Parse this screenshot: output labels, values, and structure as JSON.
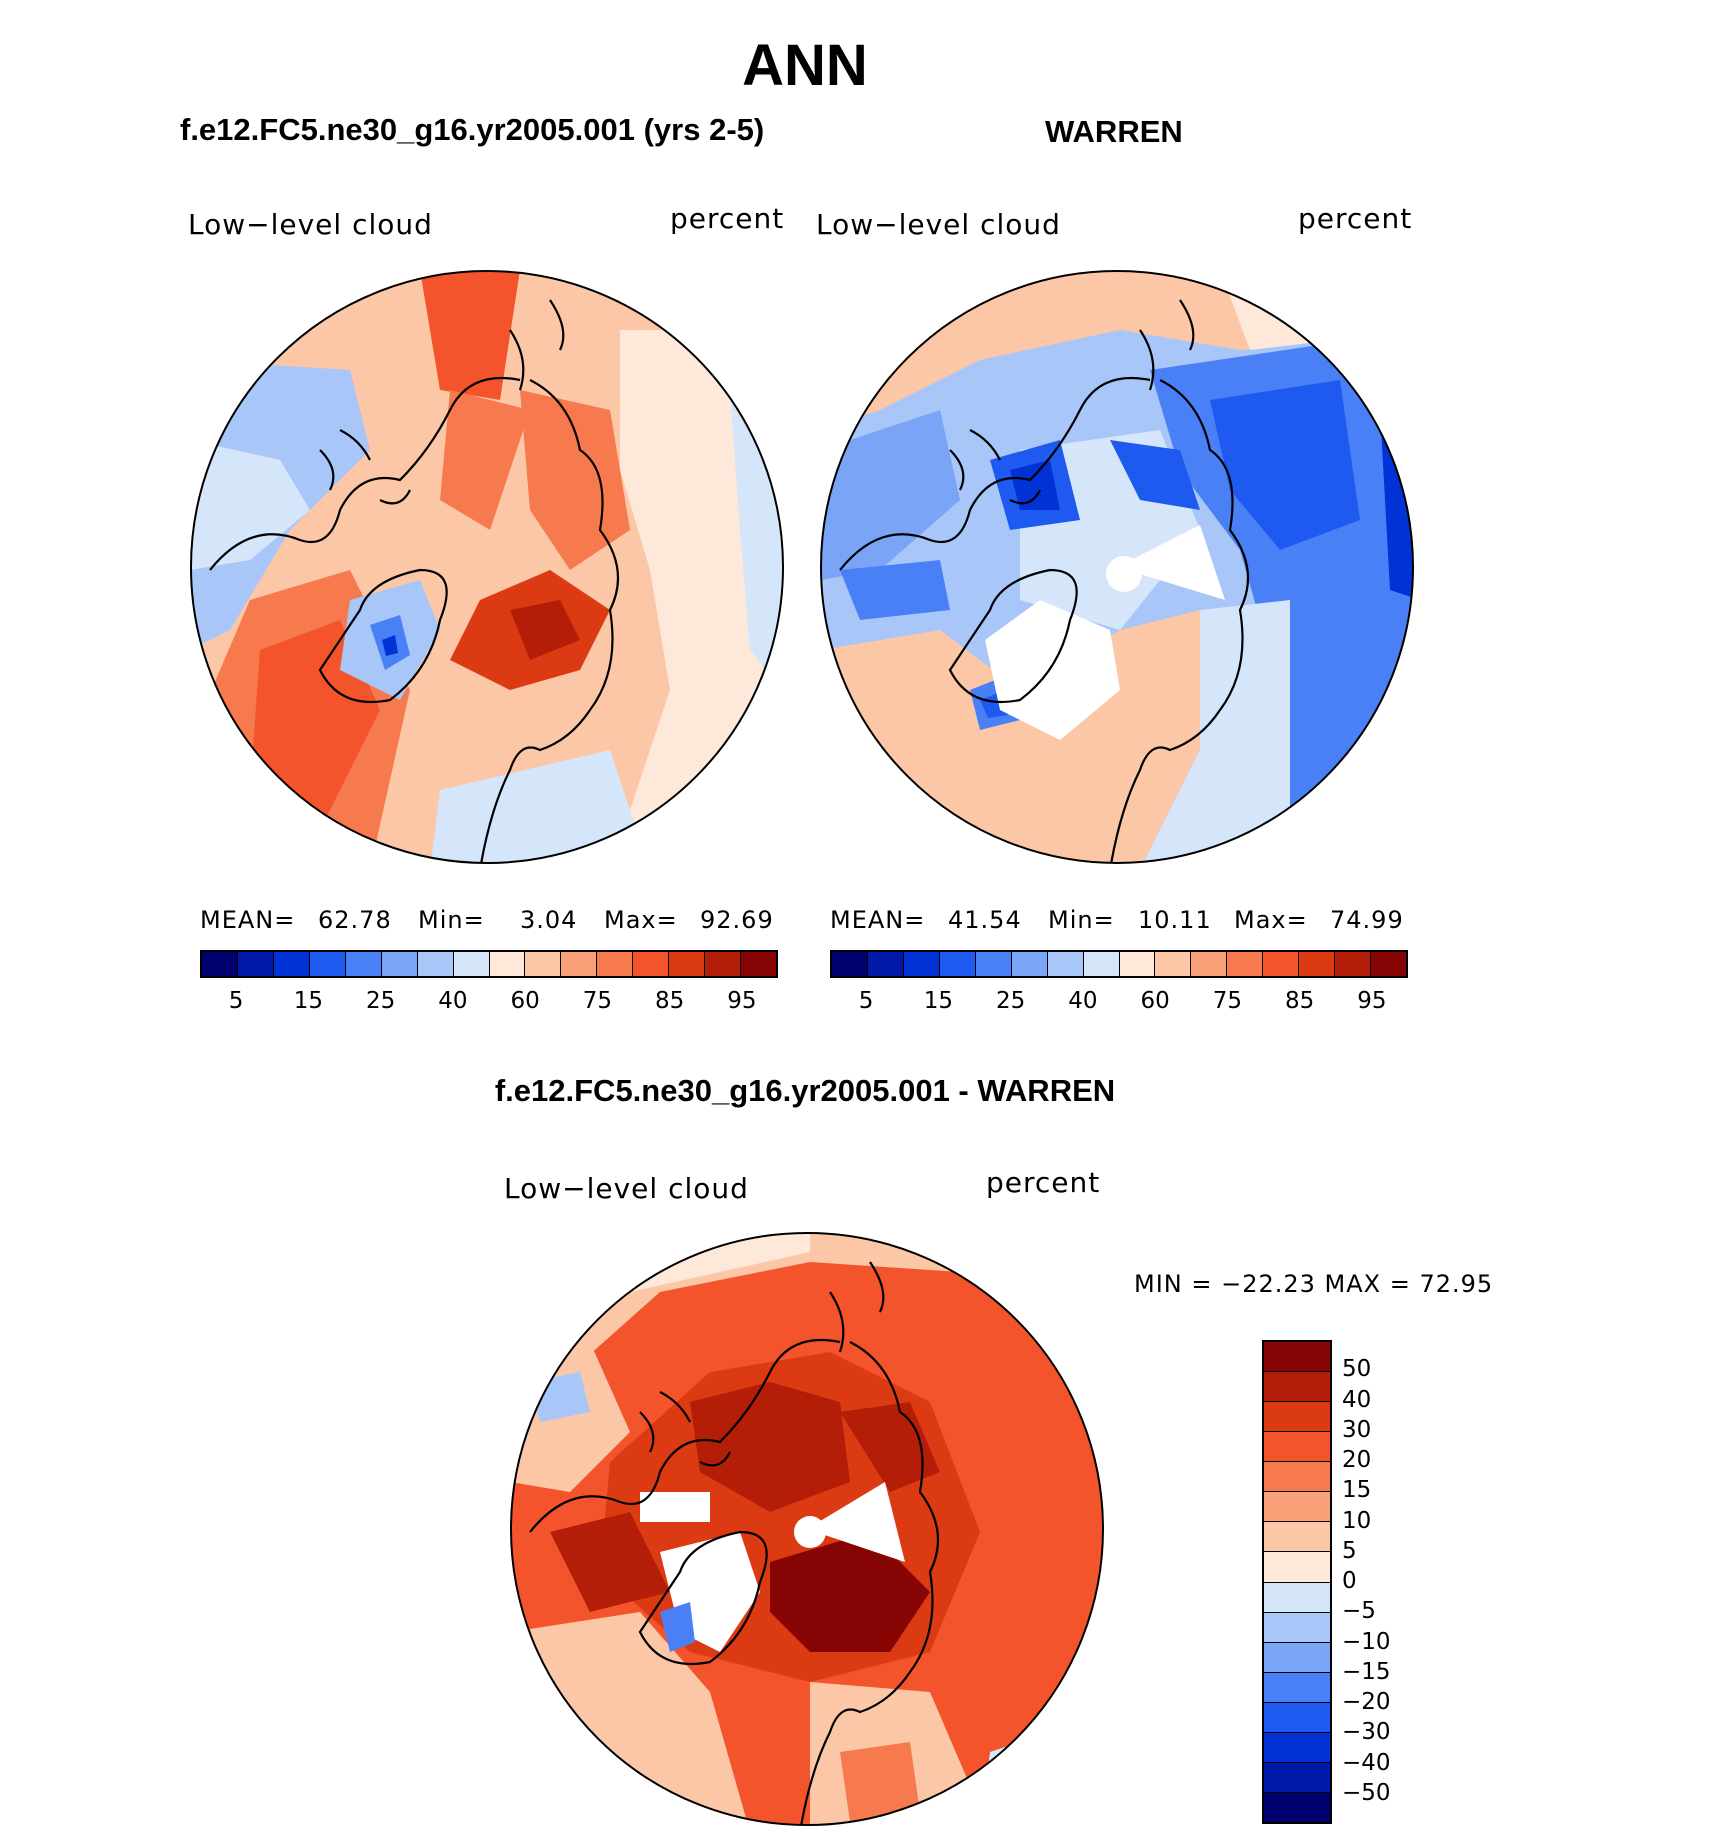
{
  "page_title": "ANN",
  "panels": {
    "model": {
      "title": "f.e12.FC5.ne30_g16.yr2005.001 (yrs 2-5)",
      "variable": "Low−level cloud",
      "units": "percent",
      "mean_label": "MEAN=",
      "mean": "62.78",
      "min_label": "Min=",
      "min": "3.04",
      "max_label": "Max=",
      "max": "92.69"
    },
    "obs": {
      "title": "WARREN",
      "variable": "Low−level cloud",
      "units": "percent",
      "mean_label": "MEAN=",
      "mean": "41.54",
      "min_label": "Min=",
      "min": "10.11",
      "max_label": "Max=",
      "max": "74.99"
    },
    "diff": {
      "title": "f.e12.FC5.ne30_g16.yr2005.001 - WARREN",
      "variable": "Low−level cloud",
      "units": "percent",
      "minmax_label": "MIN = −22.23 MAX =   72.95"
    }
  },
  "colorbar_abs": {
    "colors": [
      "#00006e",
      "#0019a8",
      "#0032d6",
      "#1e5af0",
      "#4a80f5",
      "#7aa5f7",
      "#a8c6f8",
      "#d6e6fa",
      "#fde8d9",
      "#fbc7a6",
      "#f9a27a",
      "#f77a4e",
      "#f3542b",
      "#dc3a12",
      "#b41e08",
      "#870404"
    ],
    "ticks": [
      "5",
      "15",
      "25",
      "40",
      "60",
      "75",
      "85",
      "95"
    ]
  },
  "colorbar_diff": {
    "colors": [
      "#870404",
      "#b41e08",
      "#dc3a12",
      "#f3542b",
      "#f77a4e",
      "#f9a27a",
      "#fbc7a6",
      "#fde8d9",
      "#d6e6fa",
      "#a8c6f8",
      "#7aa5f7",
      "#4a80f5",
      "#1e5af0",
      "#0032d6",
      "#0019a8",
      "#00006e"
    ],
    "ticks": [
      "50",
      "40",
      "30",
      "20",
      "15",
      "10",
      "5",
      "0",
      "−5",
      "−10",
      "−15",
      "−20",
      "−30",
      "−40",
      "−50"
    ]
  },
  "colors": {
    "land_outline": "#000000",
    "missing": "#ffffff"
  }
}
